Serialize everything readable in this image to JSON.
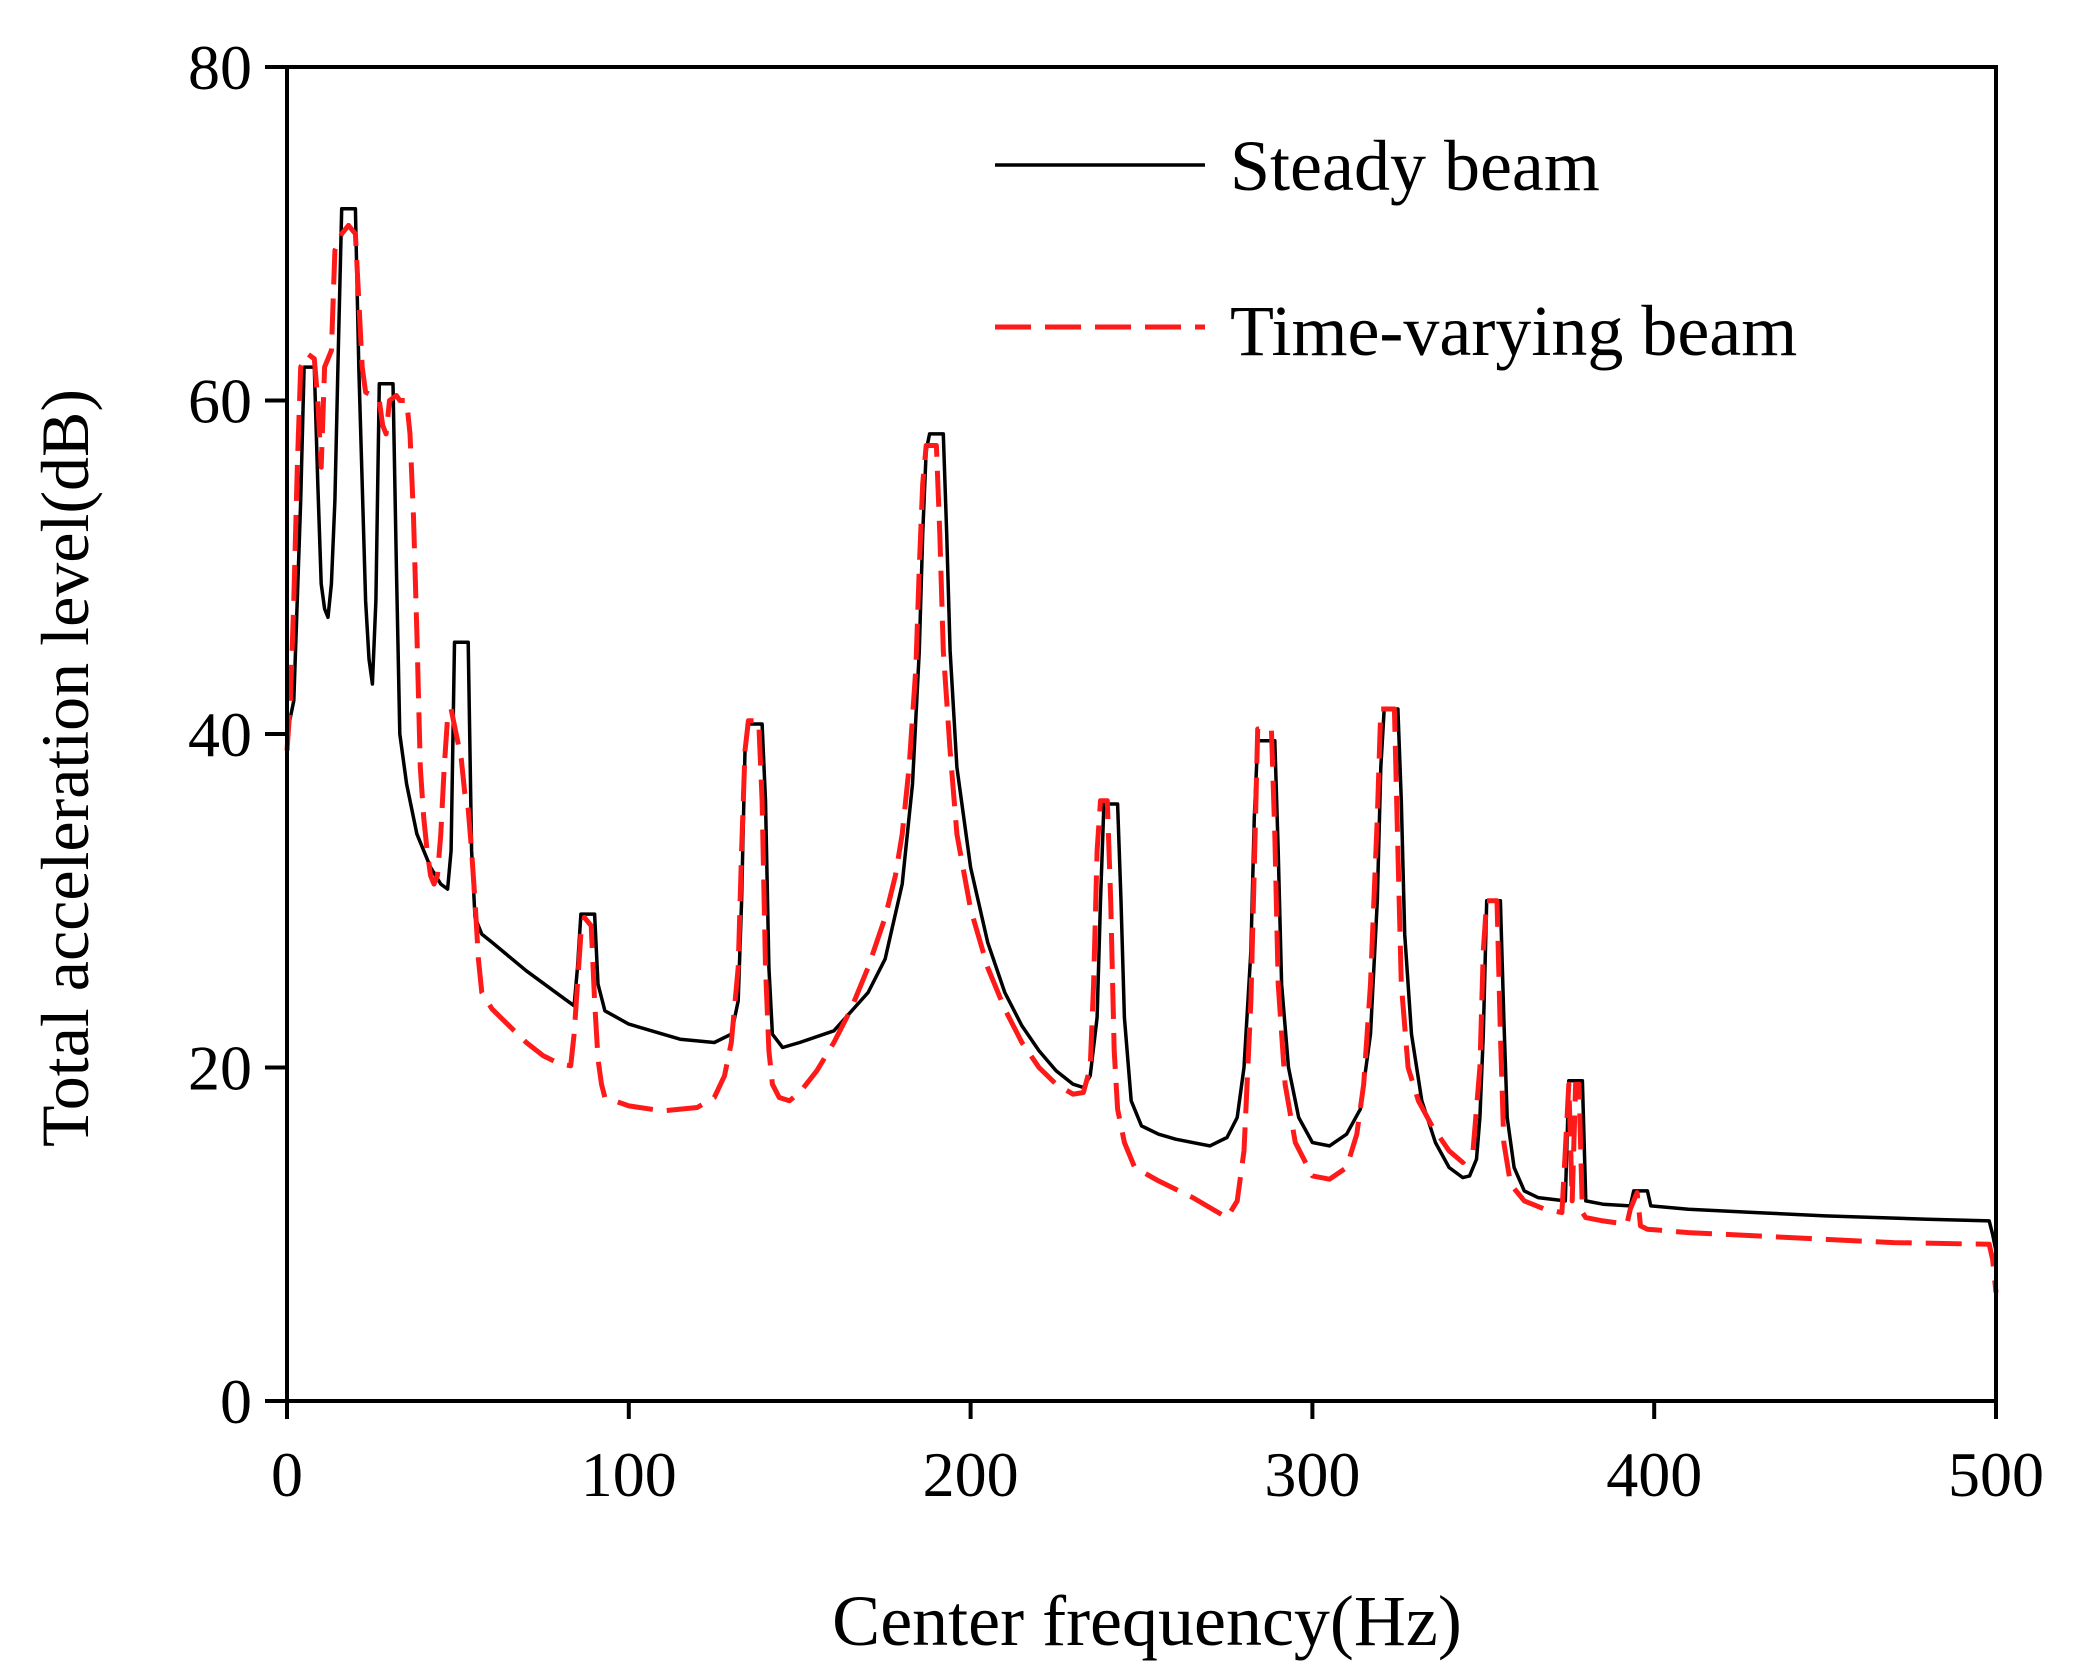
{
  "chart_data": {
    "type": "line",
    "title": "",
    "xlabel": "Center frequency(Hz)",
    "ylabel": "Total acceleration level(dB)",
    "xlim": [
      0,
      500
    ],
    "ylim": [
      0,
      80
    ],
    "xticks": [
      0,
      100,
      200,
      300,
      400,
      500
    ],
    "yticks": [
      0,
      20,
      40,
      60,
      80
    ],
    "grid": false,
    "legend_position": "top-right",
    "series": [
      {
        "name": "Steady beam",
        "color": "#000000",
        "style": "solid",
        "points": [
          [
            0,
            40
          ],
          [
            2,
            42
          ],
          [
            4,
            54
          ],
          [
            5,
            62
          ],
          [
            8,
            62
          ],
          [
            9,
            55
          ],
          [
            10,
            49
          ],
          [
            11,
            47.5
          ],
          [
            12,
            47
          ],
          [
            13,
            49
          ],
          [
            14,
            54
          ],
          [
            15,
            63
          ],
          [
            16,
            71.5
          ],
          [
            20,
            71.5
          ],
          [
            21,
            62
          ],
          [
            23,
            48
          ],
          [
            24,
            44.5
          ],
          [
            25,
            43
          ],
          [
            26,
            48
          ],
          [
            27,
            61
          ],
          [
            31,
            61
          ],
          [
            32,
            50
          ],
          [
            33,
            40
          ],
          [
            35,
            37
          ],
          [
            38,
            34
          ],
          [
            42,
            32
          ],
          [
            45,
            31
          ],
          [
            47,
            30.7
          ],
          [
            48,
            33
          ],
          [
            49,
            45.5
          ],
          [
            53,
            45.5
          ],
          [
            54,
            33
          ],
          [
            55,
            29
          ],
          [
            57,
            28
          ],
          [
            60,
            27.5
          ],
          [
            70,
            25.8
          ],
          [
            80,
            24.3
          ],
          [
            84,
            23.7
          ],
          [
            85,
            26
          ],
          [
            86,
            29.2
          ],
          [
            90,
            29.2
          ],
          [
            91,
            25
          ],
          [
            93,
            23.4
          ],
          [
            100,
            22.6
          ],
          [
            110,
            22
          ],
          [
            115,
            21.7
          ],
          [
            125,
            21.5
          ],
          [
            130,
            22
          ],
          [
            132,
            24
          ],
          [
            133,
            30
          ],
          [
            134,
            39
          ],
          [
            135,
            40.6
          ],
          [
            139,
            40.6
          ],
          [
            140,
            36
          ],
          [
            141,
            26
          ],
          [
            142,
            22
          ],
          [
            145,
            21.2
          ],
          [
            150,
            21.5
          ],
          [
            160,
            22.2
          ],
          [
            170,
            24.5
          ],
          [
            175,
            26.5
          ],
          [
            180,
            31
          ],
          [
            183,
            37
          ],
          [
            185,
            45
          ],
          [
            186,
            52
          ],
          [
            187,
            57
          ],
          [
            188,
            58
          ],
          [
            192,
            58
          ],
          [
            193,
            52
          ],
          [
            194,
            45
          ],
          [
            196,
            38
          ],
          [
            200,
            32
          ],
          [
            205,
            27.5
          ],
          [
            210,
            24.5
          ],
          [
            215,
            22.5
          ],
          [
            220,
            21
          ],
          [
            225,
            19.8
          ],
          [
            230,
            19
          ],
          [
            233,
            18.8
          ],
          [
            235,
            19.5
          ],
          [
            237,
            23
          ],
          [
            238,
            30
          ],
          [
            239,
            35.8
          ],
          [
            243,
            35.8
          ],
          [
            244,
            30
          ],
          [
            245,
            23
          ],
          [
            247,
            18
          ],
          [
            250,
            16.5
          ],
          [
            255,
            16
          ],
          [
            260,
            15.7
          ],
          [
            270,
            15.3
          ],
          [
            275,
            15.8
          ],
          [
            278,
            17
          ],
          [
            280,
            20
          ],
          [
            282,
            27
          ],
          [
            283,
            35
          ],
          [
            284,
            39.6
          ],
          [
            289,
            39.6
          ],
          [
            290,
            33
          ],
          [
            291,
            25
          ],
          [
            293,
            20
          ],
          [
            296,
            17
          ],
          [
            300,
            15.5
          ],
          [
            305,
            15.3
          ],
          [
            310,
            16
          ],
          [
            314,
            17.5
          ],
          [
            317,
            22
          ],
          [
            319,
            30
          ],
          [
            320,
            38
          ],
          [
            321,
            41.5
          ],
          [
            325,
            41.5
          ],
          [
            326,
            36
          ],
          [
            327,
            28
          ],
          [
            329,
            22
          ],
          [
            332,
            18
          ],
          [
            336,
            15.5
          ],
          [
            340,
            14
          ],
          [
            344,
            13.4
          ],
          [
            346,
            13.5
          ],
          [
            348,
            14.5
          ],
          [
            349,
            17
          ],
          [
            350,
            22
          ],
          [
            351,
            30
          ],
          [
            355,
            30
          ],
          [
            356,
            23
          ],
          [
            357,
            17
          ],
          [
            359,
            14
          ],
          [
            362,
            12.6
          ],
          [
            366,
            12.2
          ],
          [
            370,
            12.1
          ],
          [
            374,
            12
          ],
          [
            375,
            19.2
          ],
          [
            379,
            19.2
          ],
          [
            380,
            12
          ],
          [
            385,
            11.8
          ],
          [
            393,
            11.7
          ],
          [
            394,
            12.6
          ],
          [
            398,
            12.6
          ],
          [
            399,
            11.7
          ],
          [
            410,
            11.5
          ],
          [
            430,
            11.3
          ],
          [
            450,
            11.1
          ],
          [
            480,
            10.9
          ],
          [
            498,
            10.8
          ],
          [
            499,
            10
          ],
          [
            500,
            9
          ]
        ]
      },
      {
        "name": "Time-varying beam",
        "color": "#ff1a1a",
        "style": "dashed",
        "points": [
          [
            0,
            39
          ],
          [
            1,
            42
          ],
          [
            2,
            48
          ],
          [
            3,
            56
          ],
          [
            4,
            62
          ],
          [
            6,
            62.8
          ],
          [
            8,
            62.5
          ],
          [
            9,
            60
          ],
          [
            10,
            56
          ],
          [
            11,
            62
          ],
          [
            13,
            63
          ],
          [
            14,
            69
          ],
          [
            16,
            70
          ],
          [
            18,
            70.5
          ],
          [
            20,
            70
          ],
          [
            21,
            66
          ],
          [
            22,
            62
          ],
          [
            23,
            60.5
          ],
          [
            25,
            60.3
          ],
          [
            27,
            60
          ],
          [
            28,
            58.5
          ],
          [
            29,
            58
          ],
          [
            30,
            60
          ],
          [
            32,
            60.3
          ],
          [
            33,
            60
          ],
          [
            35,
            60
          ],
          [
            36,
            58
          ],
          [
            37,
            53
          ],
          [
            38,
            46
          ],
          [
            39,
            38
          ],
          [
            40,
            35
          ],
          [
            41,
            33
          ],
          [
            42,
            31.5
          ],
          [
            43,
            31
          ],
          [
            44,
            31.5
          ],
          [
            45,
            34
          ],
          [
            46,
            38
          ],
          [
            47,
            41
          ],
          [
            48,
            41.5
          ],
          [
            49,
            40.5
          ],
          [
            51,
            38.5
          ],
          [
            52,
            36.5
          ],
          [
            53,
            35.5
          ],
          [
            54,
            33
          ],
          [
            55,
            30
          ],
          [
            56,
            26.5
          ],
          [
            57,
            24.5
          ],
          [
            60,
            23.5
          ],
          [
            65,
            22.5
          ],
          [
            70,
            21.5
          ],
          [
            75,
            20.7
          ],
          [
            80,
            20.2
          ],
          [
            83,
            20.1
          ],
          [
            84,
            22
          ],
          [
            85,
            25
          ],
          [
            86,
            28
          ],
          [
            87,
            29
          ],
          [
            89,
            28.5
          ],
          [
            90,
            24
          ],
          [
            91,
            20.5
          ],
          [
            92,
            19
          ],
          [
            93,
            18.2
          ],
          [
            100,
            17.7
          ],
          [
            110,
            17.4
          ],
          [
            120,
            17.6
          ],
          [
            125,
            18.2
          ],
          [
            128,
            19.5
          ],
          [
            130,
            21.5
          ],
          [
            132,
            26
          ],
          [
            133,
            33
          ],
          [
            134,
            39
          ],
          [
            135,
            40.8
          ],
          [
            138,
            40.8
          ],
          [
            139,
            36
          ],
          [
            140,
            26
          ],
          [
            141,
            21
          ],
          [
            142,
            19
          ],
          [
            144,
            18.2
          ],
          [
            147,
            18
          ],
          [
            150,
            18.5
          ],
          [
            155,
            19.8
          ],
          [
            160,
            21.5
          ],
          [
            165,
            23.5
          ],
          [
            170,
            26
          ],
          [
            175,
            29
          ],
          [
            178,
            31.5
          ],
          [
            180,
            34
          ],
          [
            182,
            38
          ],
          [
            184,
            44
          ],
          [
            185,
            50
          ],
          [
            186,
            55
          ],
          [
            187,
            57.3
          ],
          [
            190,
            57.3
          ],
          [
            191,
            52
          ],
          [
            192,
            45
          ],
          [
            194,
            39
          ],
          [
            196,
            34
          ],
          [
            200,
            29.5
          ],
          [
            205,
            26
          ],
          [
            210,
            23.5
          ],
          [
            215,
            21.5
          ],
          [
            220,
            20
          ],
          [
            225,
            19
          ],
          [
            230,
            18.4
          ],
          [
            233,
            18.5
          ],
          [
            235,
            20
          ],
          [
            236,
            25
          ],
          [
            237,
            33
          ],
          [
            238,
            36
          ],
          [
            240,
            36
          ],
          [
            241,
            30
          ],
          [
            242,
            21
          ],
          [
            243,
            17.5
          ],
          [
            245,
            15.5
          ],
          [
            248,
            14
          ],
          [
            255,
            13.2
          ],
          [
            265,
            12.2
          ],
          [
            275,
            11
          ],
          [
            278,
            12
          ],
          [
            280,
            15
          ],
          [
            282,
            24
          ],
          [
            283,
            32
          ],
          [
            284,
            40.3
          ],
          [
            288,
            40.3
          ],
          [
            289,
            34
          ],
          [
            290,
            25
          ],
          [
            292,
            19
          ],
          [
            295,
            15.5
          ],
          [
            300,
            13.5
          ],
          [
            305,
            13.3
          ],
          [
            310,
            14
          ],
          [
            313,
            16
          ],
          [
            315,
            19
          ],
          [
            317,
            25
          ],
          [
            319,
            35
          ],
          [
            320,
            41.5
          ],
          [
            324,
            41.5
          ],
          [
            325,
            33
          ],
          [
            326,
            25
          ],
          [
            328,
            20
          ],
          [
            331,
            18
          ],
          [
            335,
            16.5
          ],
          [
            340,
            15
          ],
          [
            344,
            14.3
          ],
          [
            347,
            15
          ],
          [
            349,
            20
          ],
          [
            350,
            27
          ],
          [
            351,
            30
          ],
          [
            354,
            30
          ],
          [
            355,
            22
          ],
          [
            356,
            15.5
          ],
          [
            358,
            13
          ],
          [
            362,
            12
          ],
          [
            368,
            11.5
          ],
          [
            373,
            11.3
          ],
          [
            374,
            15
          ],
          [
            375,
            19
          ],
          [
            376,
            12
          ],
          [
            377,
            19
          ],
          [
            378,
            19
          ],
          [
            379,
            11.3
          ],
          [
            380,
            11
          ],
          [
            385,
            10.8
          ],
          [
            392,
            10.6
          ],
          [
            393,
            11.5
          ],
          [
            395,
            12.5
          ],
          [
            396,
            10.5
          ],
          [
            398,
            10.3
          ],
          [
            410,
            10.1
          ],
          [
            430,
            9.9
          ],
          [
            450,
            9.7
          ],
          [
            470,
            9.5
          ],
          [
            498,
            9.4
          ],
          [
            499,
            8.5
          ],
          [
            500,
            6.5
          ]
        ]
      }
    ]
  }
}
